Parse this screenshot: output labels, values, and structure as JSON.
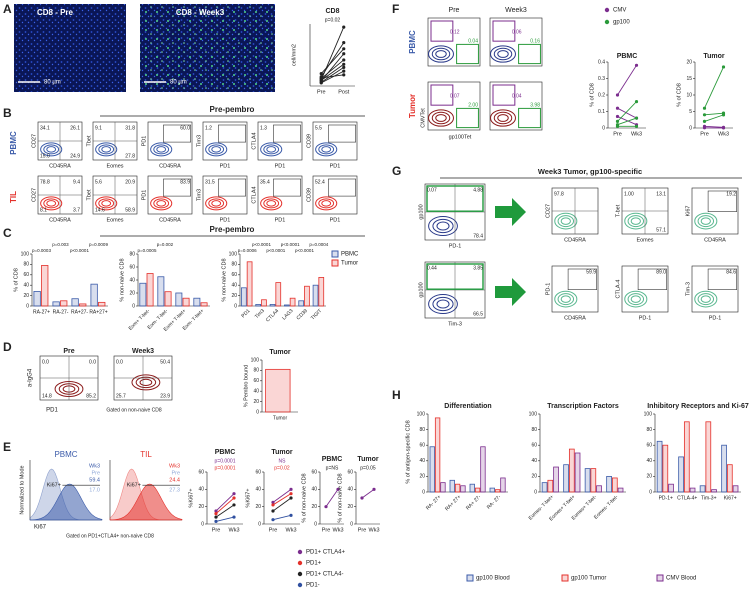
{
  "A": {
    "letter": "A",
    "images": [
      "CD8 - Pre",
      "CD8 - Week3"
    ],
    "scale_bar": "80 µm",
    "chart": {
      "type": "paired",
      "title": "CD8",
      "y_label": "cell/mm2",
      "categories": [
        "Pre",
        "Post"
      ],
      "p_values": [
        "p=0.02"
      ],
      "ylim": [
        0,
        1000
      ],
      "series": [
        {
          "color": "#222",
          "values": [
            100,
            950
          ]
        },
        {
          "color": "#222",
          "values": [
            150,
            700
          ]
        },
        {
          "color": "#222",
          "values": [
            80,
            520
          ]
        },
        {
          "color": "#222",
          "values": [
            200,
            600
          ]
        },
        {
          "color": "#222",
          "values": [
            120,
            420
          ]
        },
        {
          "color": "#222",
          "values": [
            60,
            300
          ]
        },
        {
          "color": "#222",
          "values": [
            90,
            350
          ]
        },
        {
          "color": "#222",
          "values": [
            50,
            240
          ]
        },
        {
          "color": "#222",
          "values": [
            130,
            180
          ]
        }
      ]
    }
  },
  "B": {
    "letter": "B",
    "title": "Pre-pembro",
    "rows": [
      "PBMC",
      "TIL"
    ],
    "plots": [
      [
        {
          "y_label": "CD27",
          "x_label": "CD45RA",
          "quad": true,
          "labels": {
            "tl": "34.1",
            "tr": "26.1",
            "bl": "15.0",
            "br": "24.9"
          }
        },
        {
          "y_label": "Tbet",
          "x_label": "Eomes",
          "quad": true,
          "labels": {
            "tl": "9.1",
            "tr": "31.8",
            "br": "27.8"
          }
        },
        {
          "y_label": "PD1",
          "x_label": "CD45RA",
          "quad": false,
          "labels": {
            "tr": "60.0"
          }
        },
        {
          "y_label": "Tim3",
          "x_label": "PD1",
          "quad": false,
          "labels": {
            "tl": "1.2"
          }
        },
        {
          "y_label": "CTLA4",
          "x_label": "PD1",
          "quad": false,
          "labels": {
            "tl": "1.3"
          }
        },
        {
          "y_label": "CD39",
          "x_label": "PD1",
          "quad": false,
          "labels": {
            "tl": "5.5"
          }
        }
      ],
      [
        {
          "y_label": "CD27",
          "x_label": "CD45RA",
          "quad": true,
          "labels": {
            "tl": "78.8",
            "tr": "9.4",
            "bl": "8.1",
            "br": "3.7"
          }
        },
        {
          "y_label": "Tbet",
          "x_label": "Eomes",
          "quad": true,
          "labels": {
            "tl": "5.6",
            "tr": "20.9",
            "bl": "14.6",
            "br": "58.9"
          }
        },
        {
          "y_label": "PD1",
          "x_label": "CD45RA",
          "quad": false,
          "labels": {
            "tr": "83.9"
          }
        },
        {
          "y_label": "Tim3",
          "x_label": "PD1",
          "quad": false,
          "labels": {
            "tl": "31.5"
          }
        },
        {
          "y_label": "CTLA4",
          "x_label": "PD1",
          "quad": false,
          "labels": {
            "tl": "35.4"
          }
        },
        {
          "y_label": "CD39",
          "x_label": "PD1",
          "quad": false,
          "labels": {
            "tl": "52.4"
          }
        }
      ]
    ]
  },
  "C": {
    "letter": "C",
    "title": "Pre-pembro",
    "charts": [
      {
        "type": "bar",
        "y_label": "% of CD8",
        "categories": [
          "RA-27+",
          "RA-27-",
          "RA+27-",
          "RA+27+"
        ],
        "p_values": [
          "p=0.0003",
          "p=0.003",
          "p<0.0001",
          "p=0.0009"
        ],
        "ylim": [
          0,
          100
        ],
        "yticks": [
          0,
          20,
          40,
          60,
          80,
          100
        ],
        "series": [
          {
            "name": "PBMC",
            "color": "#3b5ba9",
            "values": [
              28,
              8,
              14,
              42
            ]
          },
          {
            "name": "Tumor",
            "color": "#e4312b",
            "values": [
              78,
              10,
              4,
              7
            ]
          }
        ]
      },
      {
        "type": "bar",
        "y_label": "% non-naive CD8",
        "categories": [
          "Eom+ T-bet-",
          "Eom- T-bet-",
          "Eom+ T-bet+",
          "Eom- T-bet+"
        ],
        "p_values": [
          "p=0.0005",
          "p=0.002",
          null,
          null
        ],
        "ylim": [
          0,
          80
        ],
        "yticks": [
          0,
          20,
          40,
          60,
          80
        ],
        "series": [
          {
            "name": "PBMC",
            "color": "#3b5ba9",
            "values": [
              35,
              45,
              20,
              12
            ]
          },
          {
            "name": "Tumor",
            "color": "#e4312b",
            "values": [
              50,
              22,
              12,
              5
            ]
          }
        ]
      },
      {
        "type": "bar",
        "y_label": "% non-naive CD8",
        "categories": [
          "PD1",
          "Tim3",
          "CTLA4",
          "LAG3",
          "CD39",
          "TIGIT"
        ],
        "legend": "right",
        "p_values": [
          "p=0.0006",
          "p<0.0001",
          "p<0.0001",
          "p<0.0001",
          "p<0.0001",
          "p=0.0004"
        ],
        "ylim": [
          0,
          100
        ],
        "yticks": [
          0,
          20,
          40,
          60,
          80,
          100
        ],
        "series": [
          {
            "name": "PBMC",
            "color": "#3b5ba9",
            "values": [
              35,
              3,
              3,
              2,
              10,
              40
            ]
          },
          {
            "name": "Tumor",
            "color": "#e4312b",
            "values": [
              85,
              12,
              45,
              15,
              38,
              55
            ]
          }
        ]
      }
    ]
  },
  "D": {
    "letter": "D",
    "y_label": "a-IgG4",
    "x_label": "PD1",
    "gate_note": "Gated on non-naive CD8",
    "plots": [
      {
        "title": "Pre",
        "quad": true,
        "labels": {
          "tl": "0.0",
          "tr": "0.0",
          "bl": "14.8",
          "br": "85.2"
        }
      },
      {
        "title": "Week3",
        "quad": true,
        "labels": {
          "tl": "0.0",
          "tr": "50.4",
          "bl": "25.7",
          "br": "23.9"
        }
      }
    ],
    "chart": {
      "type": "bar",
      "title": "Tumor",
      "y_label": "% Pembro bound",
      "categories": [
        "Tumor"
      ],
      "ylim": [
        0,
        100
      ],
      "yticks": [
        0,
        20,
        40,
        60,
        80,
        100
      ],
      "series": [
        {
          "color": "#e4312b",
          "values": [
            82
          ]
        }
      ]
    }
  },
  "E": {
    "letter": "E",
    "y_label": "Normalized to Mode",
    "x_label": "Ki67",
    "gate_note": "Gated on PD1+CTLA4+ non-naive CD8",
    "hists": [
      {
        "title": "PBMC",
        "color": "#3b5ba9",
        "legend": [
          "Wk3",
          "Pre"
        ],
        "gate": "Ki67+",
        "numbers": [
          "59.4",
          "17.0"
        ]
      },
      {
        "title": "TIL",
        "color": "#e4312b",
        "legend": [
          "Wk3",
          "Pre"
        ],
        "gate": "Ki67+",
        "numbers": [
          "24.4",
          "27.3"
        ]
      }
    ],
    "charts": [
      {
        "type": "line",
        "title": "PBMC",
        "y_label": "%Ki67+",
        "categories": [
          "Pre",
          "Wk3"
        ],
        "p_values": [
          "p=0.0001",
          "p=0.0001"
        ],
        "p_colors": [
          "#7b2d8e",
          "#e4312b"
        ],
        "ylim": [
          0,
          60
        ],
        "yticks": [
          0,
          20,
          40,
          60
        ],
        "series": [
          {
            "name": "PD1+ CTLA4+",
            "color": "#7b2d8e",
            "values": [
              15,
              35
            ]
          },
          {
            "name": "PD1+",
            "color": "#e4312b",
            "values": [
              12,
              30
            ]
          },
          {
            "name": "PD1+ CTLA4-",
            "color": "#222",
            "values": [
              8,
              22
            ]
          },
          {
            "name": "PD1-",
            "color": "#3050a0",
            "values": [
              3,
              8
            ]
          }
        ]
      },
      {
        "type": "line",
        "title": "Tumor",
        "y_label": "%Ki67+",
        "categories": [
          "Pre",
          "Wk3"
        ],
        "p_values": [
          "NS",
          "p=0.02"
        ],
        "p_colors": [
          "#7b2d8e",
          "#e4312b"
        ],
        "ylim": [
          0,
          60
        ],
        "yticks": [
          0,
          20,
          40,
          60
        ],
        "series": [
          {
            "color": "#7b2d8e",
            "values": [
              25,
              40
            ]
          },
          {
            "color": "#e4312b",
            "values": [
              22,
              35
            ]
          },
          {
            "color": "#222",
            "values": [
              15,
              30
            ]
          },
          {
            "color": "#3050a0",
            "values": [
              5,
              10
            ]
          }
        ]
      },
      {
        "type": "line",
        "title": "PBMC",
        "y_label": "% of non-naive CD8",
        "categories": [
          "Pre",
          "Wk3"
        ],
        "p_values": [
          "p=NS"
        ],
        "ylim": [
          0,
          60
        ],
        "yticks": [
          0,
          20,
          40,
          60
        ],
        "series": [
          {
            "color": "#7b2d8e",
            "values": [
              20,
              40
            ]
          }
        ]
      },
      {
        "type": "line",
        "title": "Tumor",
        "y_label": "% of non-naive CD8",
        "categories": [
          "Pre",
          "Wk3"
        ],
        "p_values": [
          "p=0.05"
        ],
        "ylim": [
          0,
          60
        ],
        "yticks": [
          0,
          20,
          40,
          60
        ],
        "series": [
          {
            "color": "#7b2d8e",
            "values": [
              30,
              40
            ]
          }
        ]
      }
    ]
  },
  "F": {
    "letter": "F",
    "cols": [
      "Pre",
      "Week3"
    ],
    "rows": [
      "PBMC",
      "Tumor"
    ],
    "y_label": "CMVTet",
    "x_label": "gp100Tet",
    "plots": [
      [
        {
          "labels": {
            "tl": "0.12",
            "br": "0.04"
          }
        },
        {
          "labels": {
            "tl": "0.06",
            "br": "0.16"
          }
        }
      ],
      [
        {
          "labels": {
            "tl": "0.07",
            "br": "2.00"
          }
        },
        {
          "labels": {
            "tl": "0.04",
            "br": "3.98"
          }
        }
      ]
    ],
    "charts": [
      {
        "type": "line",
        "title": "PBMC",
        "y_label": "% of CD8",
        "categories": [
          "Pre",
          "Wk3"
        ],
        "ylim": [
          0,
          0.4
        ],
        "yticks": [
          0,
          0.1,
          0.2,
          0.3,
          0.4
        ],
        "series": [
          {
            "name": "CMV",
            "color": "#7b2d8e",
            "values": [
              0.2,
              0.38
            ]
          },
          {
            "color": "#7b2d8e",
            "values": [
              0.12,
              0.06
            ]
          },
          {
            "color": "#7b2d8e",
            "values": [
              0.07,
              0.02
            ]
          },
          {
            "name": "gp100",
            "color": "#2a9a3a",
            "values": [
              0.04,
              0.16
            ]
          },
          {
            "color": "#2a9a3a",
            "values": [
              0.02,
              0.06
            ]
          },
          {
            "color": "#2a9a3a",
            "values": [
              0.01,
              0.01
            ]
          }
        ]
      },
      {
        "type": "line",
        "title": "Tumor",
        "y_label": "% of CD8",
        "categories": [
          "Pre",
          "Wk3"
        ],
        "ylim": [
          0,
          20
        ],
        "yticks": [
          0,
          5,
          10,
          15,
          20
        ],
        "series": [
          {
            "color": "#7b2d8e",
            "values": [
              0.07,
              0.04
            ]
          },
          {
            "color": "#7b2d8e",
            "values": [
              0.5,
              0.2
            ]
          },
          {
            "color": "#2a9a3a",
            "values": [
              2.0,
              3.98
            ]
          },
          {
            "color": "#2a9a3a",
            "values": [
              6,
              18.5
            ]
          },
          {
            "color": "#2a9a3a",
            "values": [
              4,
              4.5
            ]
          }
        ]
      }
    ]
  },
  "G": {
    "letter": "G",
    "title": "Week3 Tumor, gp100-specific",
    "rows": [
      {
        "gate_plot": {
          "y_label": "gp100",
          "x_label": "PD-1",
          "labels": {
            "tl": "0.07",
            "tr": "4.88",
            "br": "78.4"
          }
        },
        "plots": [
          {
            "y_label": "CD27",
            "x_label": "CD45RA",
            "quad": true,
            "labels": {
              "tl": "97.8"
            }
          },
          {
            "y_label": "T-bet",
            "x_label": "Eomes",
            "quad": true,
            "labels": {
              "tl": "1.00",
              "tr": "13.1",
              "br": "57.1"
            }
          },
          {
            "y_label": "Ki67",
            "x_label": "CD45RA",
            "quad": false,
            "labels": {
              "tr": "19.2"
            }
          }
        ]
      },
      {
        "gate_plot": {
          "y_label": "gp100",
          "x_label": "Tim-3",
          "labels": {
            "tl": "0.44",
            "tr": "3.85",
            "br": "66.5"
          }
        },
        "plots": [
          {
            "y_label": "PD-1",
            "x_label": "CD45RA",
            "quad": false,
            "labels": {
              "tr": "59.9"
            }
          },
          {
            "y_label": "CTLA-4",
            "x_label": "PD-1",
            "quad": false,
            "labels": {
              "tr": "89.0"
            }
          },
          {
            "y_label": "Tim-3",
            "x_label": "PD-1",
            "quad": false,
            "labels": {
              "tr": "84.6"
            }
          }
        ]
      }
    ]
  },
  "H": {
    "letter": "H",
    "y_label": "% of antigen-specific CD8",
    "charts": [
      {
        "type": "bar",
        "title": "Differentiation",
        "categories": [
          "RA- 27+",
          "RA+ 27+",
          "RA+ 27-",
          "RA- 27-"
        ],
        "ylim": [
          0,
          100
        ],
        "yticks": [
          0,
          20,
          40,
          60,
          80,
          100
        ],
        "series": [
          {
            "name": "gp100 Blood",
            "color": "#3b5ba9",
            "values": [
              58,
              15,
              10,
              5
            ]
          },
          {
            "name": "gp100 Tumor",
            "color": "#e4312b",
            "values": [
              95,
              10,
              5,
              3
            ]
          },
          {
            "name": "CMV Blood",
            "color": "#7b2d8e",
            "values": [
              12,
              8,
              58,
              18
            ]
          }
        ]
      },
      {
        "type": "bar",
        "title": "Transcription Factors",
        "categories": [
          "Eomes- T-bet+",
          "Eomes+ T-bet+",
          "Eomes+ T-bet-",
          "Eomes- T-bet-"
        ],
        "ylim": [
          0,
          100
        ],
        "yticks": [
          0,
          20,
          40,
          60,
          80,
          100
        ],
        "series": [
          {
            "color": "#3b5ba9",
            "values": [
              12,
              35,
              30,
              20
            ]
          },
          {
            "color": "#e4312b",
            "values": [
              15,
              55,
              30,
              18
            ]
          },
          {
            "color": "#7b2d8e",
            "values": [
              32,
              50,
              8,
              5
            ]
          }
        ]
      },
      {
        "type": "bar",
        "title": "Inhibitory Receptors and Ki-67",
        "categories": [
          "PD-1+",
          "CTLA-4+",
          "Tim-3+",
          "Ki67+"
        ],
        "ylim": [
          0,
          100
        ],
        "yticks": [
          0,
          20,
          40,
          60,
          80,
          100
        ],
        "series": [
          {
            "color": "#3b5ba9",
            "values": [
              65,
              45,
              8,
              60
            ]
          },
          {
            "color": "#e4312b",
            "values": [
              60,
              90,
              90,
              35
            ]
          },
          {
            "color": "#7b2d8e",
            "values": [
              10,
              5,
              3,
              8
            ]
          }
        ]
      }
    ]
  }
}
